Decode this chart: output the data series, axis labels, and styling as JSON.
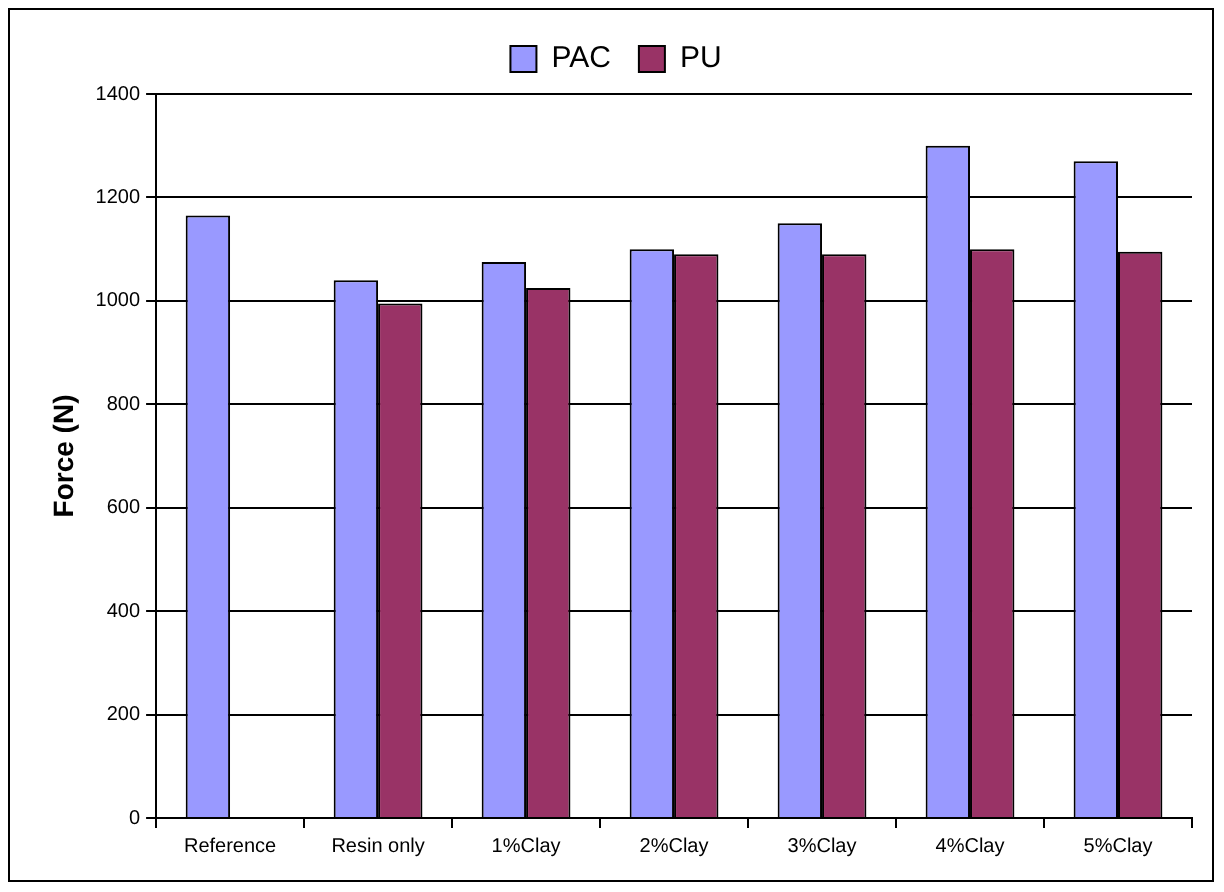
{
  "chart_data": {
    "type": "bar",
    "ylabel": "Force (N)",
    "categories": [
      "Reference",
      "Resin only",
      "1%Clay",
      "2%Clay",
      "3%Clay",
      "4%Clay",
      "5%Clay"
    ],
    "series": [
      {
        "name": "PAC",
        "color": "#9999ff",
        "values": [
          1165,
          1040,
          1075,
          1100,
          1150,
          1300,
          1270
        ]
      },
      {
        "name": "PU",
        "color": "#993366",
        "values": [
          null,
          995,
          1025,
          1090,
          1090,
          1100,
          1095
        ]
      }
    ],
    "ylim": [
      0,
      1400
    ],
    "yticks": [
      0,
      200,
      400,
      600,
      800,
      1000,
      1200,
      1400
    ],
    "grid": "y",
    "legend": "top"
  }
}
